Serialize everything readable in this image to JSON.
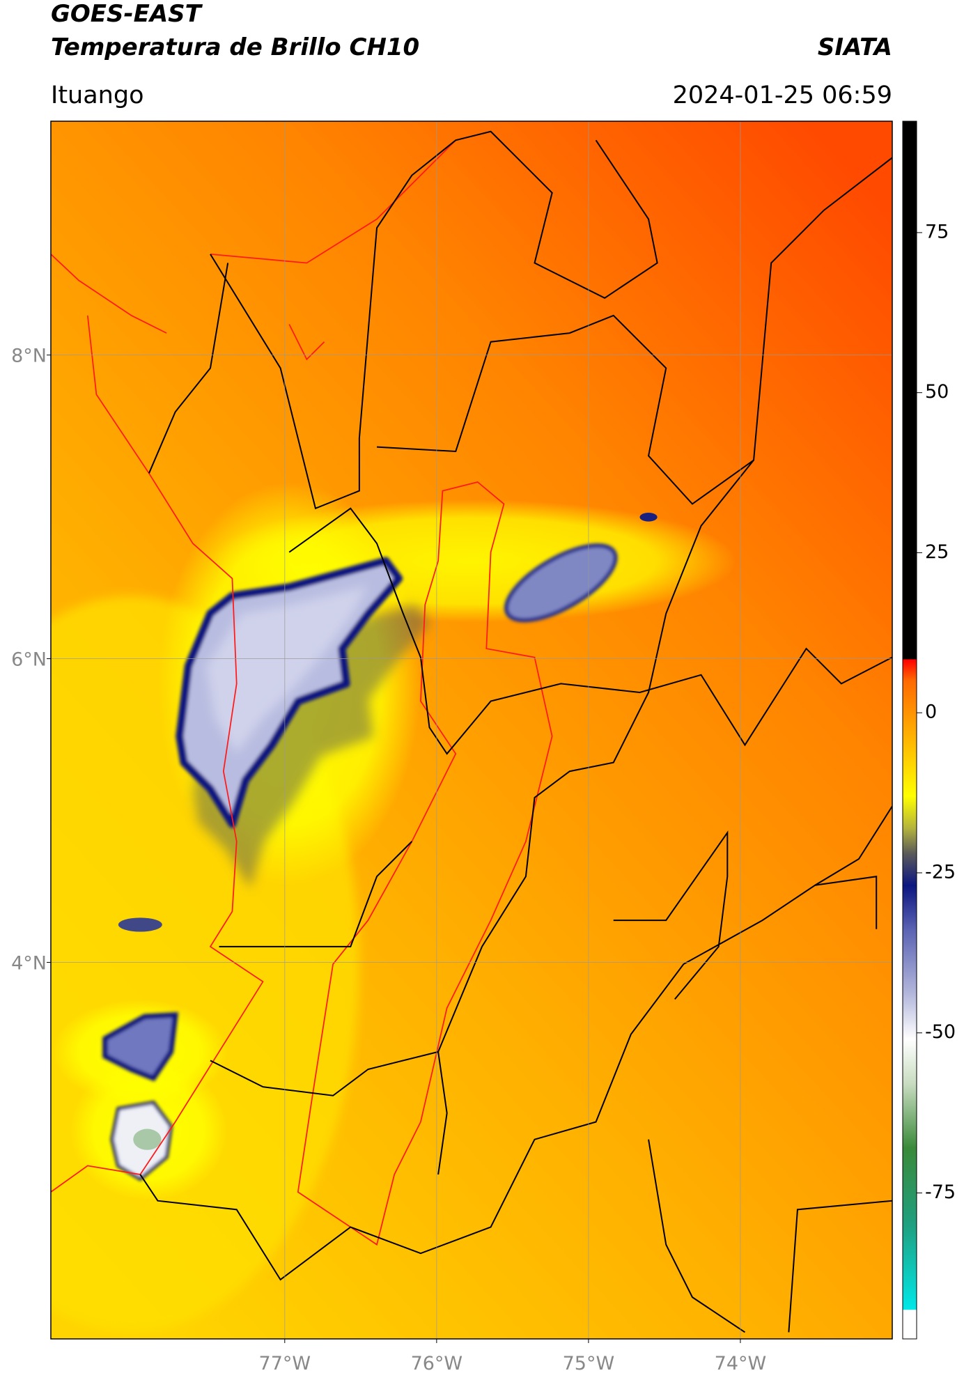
{
  "chart_data": {
    "type": "map",
    "title": "GOES-EAST",
    "subtitle": "Temperatura de Brillo CH10",
    "source": "SIATA",
    "location": "Ituango",
    "timestamp": "2024-01-25 06:59",
    "xlim": [
      -78.54,
      -73.0
    ],
    "ylim": [
      1.52,
      9.54
    ],
    "xticks": [
      {
        "value": -77,
        "label": "77°W"
      },
      {
        "value": -76,
        "label": "76°W"
      },
      {
        "value": -75,
        "label": "75°W"
      },
      {
        "value": -74,
        "label": "74°W"
      }
    ],
    "yticks": [
      {
        "value": 8,
        "label": "8°N"
      },
      {
        "value": 6,
        "label": "6°N"
      },
      {
        "value": 4,
        "label": "4°N"
      }
    ],
    "grid": true,
    "colorbar": {
      "lim": [
        -97.8,
        92.4
      ],
      "ticks": [
        75,
        50,
        25,
        0,
        -25,
        -50,
        -75
      ],
      "colormap": [
        {
          "value": -97.8,
          "color": "#ffffff"
        },
        {
          "value": -93.3,
          "color": "#ffffff"
        },
        {
          "value": -93.2,
          "color": "#00e8e8"
        },
        {
          "value": -80,
          "color": "#1fa080"
        },
        {
          "value": -68,
          "color": "#3a8a3a"
        },
        {
          "value": -58,
          "color": "#c8dcc0"
        },
        {
          "value": -51,
          "color": "#ffffff"
        },
        {
          "value": -44,
          "color": "#b4b8dc"
        },
        {
          "value": -34,
          "color": "#5c64b4"
        },
        {
          "value": -27,
          "color": "#0c1680"
        },
        {
          "value": -22,
          "color": "#5a5a5a"
        },
        {
          "value": -18,
          "color": "#b4b43c"
        },
        {
          "value": -13,
          "color": "#ffff00"
        },
        {
          "value": -4,
          "color": "#ffb400"
        },
        {
          "value": 5,
          "color": "#ff6a00"
        },
        {
          "value": 8.3,
          "color": "#ff0000"
        },
        {
          "value": 8.4,
          "color": "#000000"
        },
        {
          "value": 92.4,
          "color": "#000000"
        }
      ]
    }
  }
}
